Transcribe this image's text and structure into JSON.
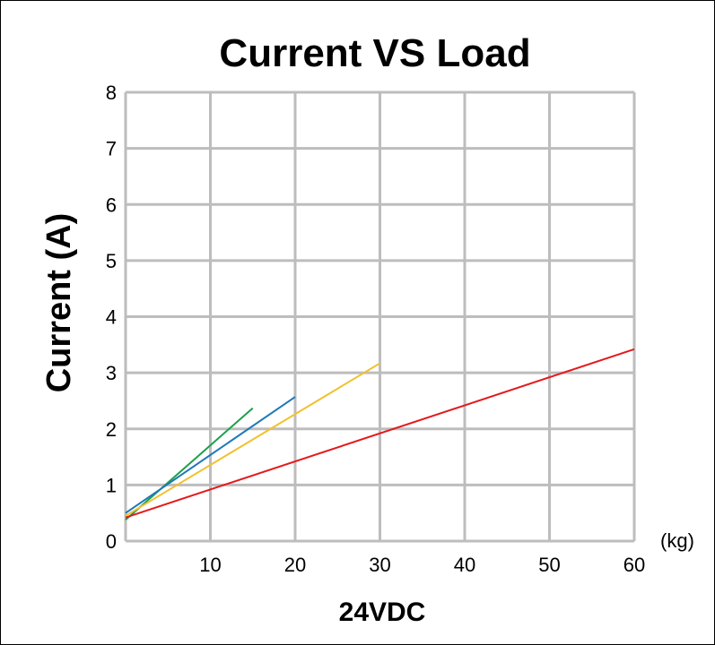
{
  "chart_data": {
    "type": "line",
    "title": "Current VS Load",
    "xlabel": "24VDC",
    "ylabel": "Current (A)",
    "x_unit": "(kg)",
    "xlim": [
      0,
      60
    ],
    "ylim": [
      0,
      8
    ],
    "xticks": [
      10,
      20,
      30,
      40,
      50,
      60
    ],
    "yticks": [
      0,
      1,
      2,
      3,
      4,
      5,
      6,
      7,
      8
    ],
    "grid": true,
    "series": [
      {
        "name": "green",
        "color": "#1ca04c",
        "x": [
          0,
          15
        ],
        "y": [
          0.38,
          2.37
        ]
      },
      {
        "name": "blue",
        "color": "#1f78b8",
        "x": [
          0,
          20
        ],
        "y": [
          0.5,
          2.57
        ]
      },
      {
        "name": "yellow",
        "color": "#f2c12e",
        "x": [
          0,
          30
        ],
        "y": [
          0.45,
          3.17
        ]
      },
      {
        "name": "red",
        "color": "#e31a1c",
        "x": [
          0,
          60
        ],
        "y": [
          0.42,
          3.42
        ]
      }
    ]
  }
}
